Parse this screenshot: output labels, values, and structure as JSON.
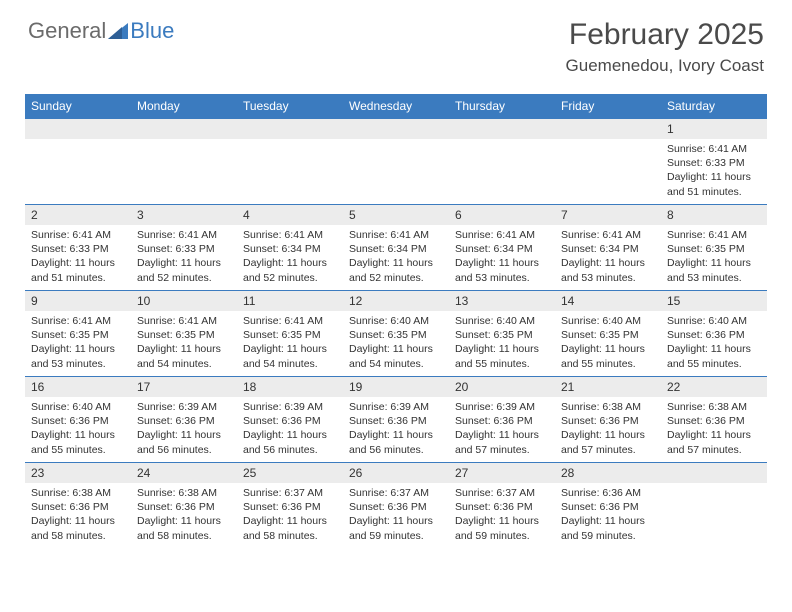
{
  "logo": {
    "text1": "General",
    "text2": "Blue"
  },
  "title": "February 2025",
  "location": "Guemenedou, Ivory Coast",
  "colors": {
    "header_bg": "#3b7bbf",
    "band_bg": "#ececec",
    "text": "#333333",
    "logo_gray": "#6b6b6b",
    "logo_blue": "#3b7bbf"
  },
  "day_names": [
    "Sunday",
    "Monday",
    "Tuesday",
    "Wednesday",
    "Thursday",
    "Friday",
    "Saturday"
  ],
  "weeks": [
    [
      null,
      null,
      null,
      null,
      null,
      null,
      {
        "d": "1",
        "sr": "6:41 AM",
        "ss": "6:33 PM",
        "dl": "11 hours and 51 minutes."
      }
    ],
    [
      {
        "d": "2",
        "sr": "6:41 AM",
        "ss": "6:33 PM",
        "dl": "11 hours and 51 minutes."
      },
      {
        "d": "3",
        "sr": "6:41 AM",
        "ss": "6:33 PM",
        "dl": "11 hours and 52 minutes."
      },
      {
        "d": "4",
        "sr": "6:41 AM",
        "ss": "6:34 PM",
        "dl": "11 hours and 52 minutes."
      },
      {
        "d": "5",
        "sr": "6:41 AM",
        "ss": "6:34 PM",
        "dl": "11 hours and 52 minutes."
      },
      {
        "d": "6",
        "sr": "6:41 AM",
        "ss": "6:34 PM",
        "dl": "11 hours and 53 minutes."
      },
      {
        "d": "7",
        "sr": "6:41 AM",
        "ss": "6:34 PM",
        "dl": "11 hours and 53 minutes."
      },
      {
        "d": "8",
        "sr": "6:41 AM",
        "ss": "6:35 PM",
        "dl": "11 hours and 53 minutes."
      }
    ],
    [
      {
        "d": "9",
        "sr": "6:41 AM",
        "ss": "6:35 PM",
        "dl": "11 hours and 53 minutes."
      },
      {
        "d": "10",
        "sr": "6:41 AM",
        "ss": "6:35 PM",
        "dl": "11 hours and 54 minutes."
      },
      {
        "d": "11",
        "sr": "6:41 AM",
        "ss": "6:35 PM",
        "dl": "11 hours and 54 minutes."
      },
      {
        "d": "12",
        "sr": "6:40 AM",
        "ss": "6:35 PM",
        "dl": "11 hours and 54 minutes."
      },
      {
        "d": "13",
        "sr": "6:40 AM",
        "ss": "6:35 PM",
        "dl": "11 hours and 55 minutes."
      },
      {
        "d": "14",
        "sr": "6:40 AM",
        "ss": "6:35 PM",
        "dl": "11 hours and 55 minutes."
      },
      {
        "d": "15",
        "sr": "6:40 AM",
        "ss": "6:36 PM",
        "dl": "11 hours and 55 minutes."
      }
    ],
    [
      {
        "d": "16",
        "sr": "6:40 AM",
        "ss": "6:36 PM",
        "dl": "11 hours and 55 minutes."
      },
      {
        "d": "17",
        "sr": "6:39 AM",
        "ss": "6:36 PM",
        "dl": "11 hours and 56 minutes."
      },
      {
        "d": "18",
        "sr": "6:39 AM",
        "ss": "6:36 PM",
        "dl": "11 hours and 56 minutes."
      },
      {
        "d": "19",
        "sr": "6:39 AM",
        "ss": "6:36 PM",
        "dl": "11 hours and 56 minutes."
      },
      {
        "d": "20",
        "sr": "6:39 AM",
        "ss": "6:36 PM",
        "dl": "11 hours and 57 minutes."
      },
      {
        "d": "21",
        "sr": "6:38 AM",
        "ss": "6:36 PM",
        "dl": "11 hours and 57 minutes."
      },
      {
        "d": "22",
        "sr": "6:38 AM",
        "ss": "6:36 PM",
        "dl": "11 hours and 57 minutes."
      }
    ],
    [
      {
        "d": "23",
        "sr": "6:38 AM",
        "ss": "6:36 PM",
        "dl": "11 hours and 58 minutes."
      },
      {
        "d": "24",
        "sr": "6:38 AM",
        "ss": "6:36 PM",
        "dl": "11 hours and 58 minutes."
      },
      {
        "d": "25",
        "sr": "6:37 AM",
        "ss": "6:36 PM",
        "dl": "11 hours and 58 minutes."
      },
      {
        "d": "26",
        "sr": "6:37 AM",
        "ss": "6:36 PM",
        "dl": "11 hours and 59 minutes."
      },
      {
        "d": "27",
        "sr": "6:37 AM",
        "ss": "6:36 PM",
        "dl": "11 hours and 59 minutes."
      },
      {
        "d": "28",
        "sr": "6:36 AM",
        "ss": "6:36 PM",
        "dl": "11 hours and 59 minutes."
      },
      null
    ]
  ],
  "labels": {
    "sunrise": "Sunrise:",
    "sunset": "Sunset:",
    "daylight": "Daylight:"
  }
}
